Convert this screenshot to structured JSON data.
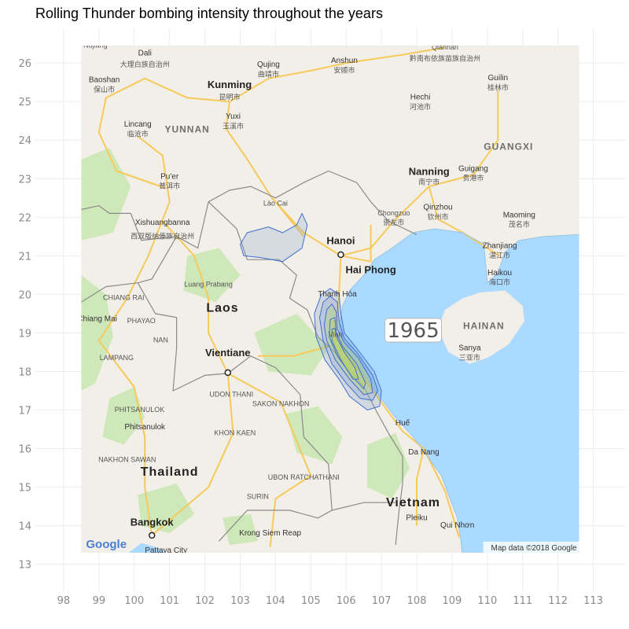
{
  "title": "Rolling Thunder bombing intensity throughout the years",
  "year_label": "1965",
  "attribution": "Map data ©2018 Google",
  "google_logo": "Google",
  "axes": {
    "xlim": [
      97.2,
      113.9
    ],
    "ylim": [
      12.3,
      26.9
    ],
    "x_ticks": [
      98,
      99,
      100,
      101,
      102,
      103,
      104,
      105,
      106,
      107,
      108,
      109,
      110,
      111,
      112,
      113
    ],
    "y_ticks": [
      13,
      14,
      15,
      16,
      17,
      18,
      19,
      20,
      21,
      22,
      23,
      24,
      25,
      26
    ],
    "map_extent": {
      "lon": [
        98.5,
        112.6
      ],
      "lat": [
        13.3,
        26.45
      ]
    }
  },
  "colors": {
    "water": "#aadaff",
    "land": "#f2efe9",
    "green": "#c8e6b0",
    "road": "#f7c95a",
    "border": "#8a8a8a",
    "density_fill": "#7f9fc9",
    "density_stroke": "#3f6fd0",
    "density_inner": "#b9d36a"
  },
  "places": [
    {
      "name": "Nujiang",
      "lon": 98.9,
      "lat": 26.4,
      "kind": "small"
    },
    {
      "name": "Dali",
      "lon": 100.3,
      "lat": 26.2,
      "kind": "city"
    },
    {
      "name": "大理白族自治州",
      "lon": 100.3,
      "lat": 25.9,
      "kind": "small"
    },
    {
      "name": "Qujing",
      "lon": 103.8,
      "lat": 25.9,
      "kind": "city"
    },
    {
      "name": "曲靖市",
      "lon": 103.8,
      "lat": 25.65,
      "kind": "small"
    },
    {
      "name": "Anshun",
      "lon": 105.95,
      "lat": 26.0,
      "kind": "city"
    },
    {
      "name": "安顺市",
      "lon": 105.95,
      "lat": 25.75,
      "kind": "small"
    },
    {
      "name": "Qiannan",
      "lon": 108.8,
      "lat": 26.35,
      "kind": "small"
    },
    {
      "name": "黔南布依族苗族自治州",
      "lon": 108.8,
      "lat": 26.05,
      "kind": "small"
    },
    {
      "name": "Baoshan",
      "lon": 99.15,
      "lat": 25.5,
      "kind": "city"
    },
    {
      "name": "保山市",
      "lon": 99.15,
      "lat": 25.25,
      "kind": "small"
    },
    {
      "name": "Kunming",
      "lon": 102.7,
      "lat": 25.35,
      "kind": "big"
    },
    {
      "name": "昆明市",
      "lon": 102.7,
      "lat": 25.05,
      "kind": "small"
    },
    {
      "name": "Guilin",
      "lon": 110.3,
      "lat": 25.55,
      "kind": "city"
    },
    {
      "name": "桂林市",
      "lon": 110.3,
      "lat": 25.3,
      "kind": "small"
    },
    {
      "name": "Hechi",
      "lon": 108.1,
      "lat": 25.05,
      "kind": "city"
    },
    {
      "name": "河池市",
      "lon": 108.1,
      "lat": 24.8,
      "kind": "small"
    },
    {
      "name": "Yuxi",
      "lon": 102.8,
      "lat": 24.55,
      "kind": "city"
    },
    {
      "name": "玉溪市",
      "lon": 102.8,
      "lat": 24.3,
      "kind": "small"
    },
    {
      "name": "Lincang",
      "lon": 100.1,
      "lat": 24.35,
      "kind": "city"
    },
    {
      "name": "临沧市",
      "lon": 100.1,
      "lat": 24.1,
      "kind": "small"
    },
    {
      "name": "YUNNAN",
      "lon": 101.5,
      "lat": 24.2,
      "kind": "region"
    },
    {
      "name": "GUANGXI",
      "lon": 110.6,
      "lat": 23.75,
      "kind": "region"
    },
    {
      "name": "Nanning",
      "lon": 108.35,
      "lat": 23.1,
      "kind": "big"
    },
    {
      "name": "南宁市",
      "lon": 108.35,
      "lat": 22.85,
      "kind": "small"
    },
    {
      "name": "Guigang",
      "lon": 109.6,
      "lat": 23.2,
      "kind": "city"
    },
    {
      "name": "贵港市",
      "lon": 109.6,
      "lat": 22.95,
      "kind": "small"
    },
    {
      "name": "Pu'er",
      "lon": 101.0,
      "lat": 23.0,
      "kind": "city"
    },
    {
      "name": "普洱市",
      "lon": 101.0,
      "lat": 22.75,
      "kind": "small"
    },
    {
      "name": "Lào Cai",
      "lon": 104.0,
      "lat": 22.3,
      "kind": "small"
    },
    {
      "name": "Qinzhou",
      "lon": 108.6,
      "lat": 22.2,
      "kind": "city"
    },
    {
      "name": "钦州市",
      "lon": 108.6,
      "lat": 21.95,
      "kind": "small"
    },
    {
      "name": "Chongzuo",
      "lon": 107.35,
      "lat": 22.05,
      "kind": "small"
    },
    {
      "name": "崇左市",
      "lon": 107.35,
      "lat": 21.8,
      "kind": "small"
    },
    {
      "name": "Maoming",
      "lon": 110.9,
      "lat": 22.0,
      "kind": "city"
    },
    {
      "name": "茂名市",
      "lon": 110.9,
      "lat": 21.75,
      "kind": "small"
    },
    {
      "name": "Xishuangbanna",
      "lon": 100.8,
      "lat": 21.8,
      "kind": "city"
    },
    {
      "name": "西双版纳傣族自治州",
      "lon": 100.8,
      "lat": 21.45,
      "kind": "small"
    },
    {
      "name": "Hanoi",
      "lon": 105.85,
      "lat": 21.3,
      "kind": "big"
    },
    {
      "name": "Zhanjiang",
      "lon": 110.35,
      "lat": 21.2,
      "kind": "city"
    },
    {
      "name": "湛江市",
      "lon": 110.35,
      "lat": 20.95,
      "kind": "small"
    },
    {
      "name": "Hai Phong",
      "lon": 106.7,
      "lat": 20.55,
      "kind": "big"
    },
    {
      "name": "Luang Prabang",
      "lon": 102.1,
      "lat": 20.2,
      "kind": "small"
    },
    {
      "name": "Haikou",
      "lon": 110.35,
      "lat": 20.5,
      "kind": "city"
    },
    {
      "name": "海口市",
      "lon": 110.35,
      "lat": 20.25,
      "kind": "small"
    },
    {
      "name": "Thanh Hóa",
      "lon": 105.75,
      "lat": 19.95,
      "kind": "city"
    },
    {
      "name": "CHIANG RAI",
      "lon": 99.7,
      "lat": 19.85,
      "kind": "small"
    },
    {
      "name": "Laos",
      "lon": 102.5,
      "lat": 19.55,
      "kind": "country"
    },
    {
      "name": "Chiang Mai",
      "lon": 98.95,
      "lat": 19.3,
      "kind": "city"
    },
    {
      "name": "PHAYAO",
      "lon": 100.2,
      "lat": 19.25,
      "kind": "small"
    },
    {
      "name": "HAINAN",
      "lon": 109.9,
      "lat": 19.1,
      "kind": "region"
    },
    {
      "name": "NAN",
      "lon": 100.75,
      "lat": 18.75,
      "kind": "small"
    },
    {
      "name": "Vinh",
      "lon": 105.7,
      "lat": 18.9,
      "kind": "small"
    },
    {
      "name": "Sanya",
      "lon": 109.5,
      "lat": 18.55,
      "kind": "city"
    },
    {
      "name": "三亚市",
      "lon": 109.5,
      "lat": 18.3,
      "kind": "small"
    },
    {
      "name": "Vientiane",
      "lon": 102.65,
      "lat": 18.4,
      "kind": "big"
    },
    {
      "name": "LAMPANG",
      "lon": 99.5,
      "lat": 18.3,
      "kind": "small"
    },
    {
      "name": "UDON THANI",
      "lon": 102.75,
      "lat": 17.35,
      "kind": "small"
    },
    {
      "name": "SAKON NAKHON",
      "lon": 104.15,
      "lat": 17.1,
      "kind": "small"
    },
    {
      "name": "PHITSANULOK",
      "lon": 100.15,
      "lat": 16.95,
      "kind": "small"
    },
    {
      "name": "Phitsanulok",
      "lon": 100.3,
      "lat": 16.5,
      "kind": "city"
    },
    {
      "name": "Huế",
      "lon": 107.6,
      "lat": 16.6,
      "kind": "city"
    },
    {
      "name": "KHON KAEN",
      "lon": 102.85,
      "lat": 16.35,
      "kind": "small"
    },
    {
      "name": "Da Nang",
      "lon": 108.2,
      "lat": 15.85,
      "kind": "city"
    },
    {
      "name": "NAKHON SAWAN",
      "lon": 99.8,
      "lat": 15.65,
      "kind": "small"
    },
    {
      "name": "Thailand",
      "lon": 101.0,
      "lat": 15.3,
      "kind": "country"
    },
    {
      "name": "UBON RATCHATHANI",
      "lon": 104.8,
      "lat": 15.2,
      "kind": "small"
    },
    {
      "name": "SURIN",
      "lon": 103.5,
      "lat": 14.7,
      "kind": "small"
    },
    {
      "name": "Vietnam",
      "lon": 107.9,
      "lat": 14.5,
      "kind": "country"
    },
    {
      "name": "Bangkok",
      "lon": 100.5,
      "lat": 14.0,
      "kind": "big"
    },
    {
      "name": "Pleiku",
      "lon": 108.0,
      "lat": 14.15,
      "kind": "city"
    },
    {
      "name": "Krong Siem Reap",
      "lon": 103.85,
      "lat": 13.75,
      "kind": "city"
    },
    {
      "name": "Qui Nhơn",
      "lon": 109.15,
      "lat": 13.95,
      "kind": "city"
    },
    {
      "name": "Pattaya City",
      "lon": 100.9,
      "lat": 13.3,
      "kind": "city"
    }
  ]
}
